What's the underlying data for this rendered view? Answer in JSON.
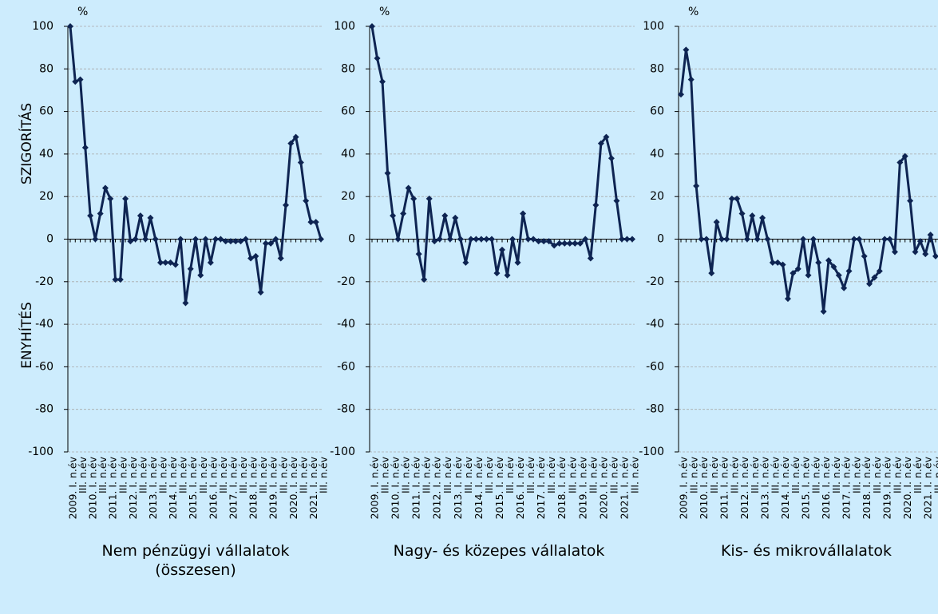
{
  "chart_data": [
    {
      "type": "line",
      "title": "Nem pénzügyi vállalatok (összesen)",
      "y_unit": "%",
      "y_annotations": [
        "SZIGORÍTÁS",
        "ENYHÍTÉS"
      ],
      "color": "#0e2452",
      "grid": true,
      "categories": [
        "2009. I. n.év",
        null,
        "III. n.év",
        null,
        "2010. I. n.év",
        null,
        "III. n.év",
        null,
        "2011. I. n.év",
        null,
        "III. n.év",
        null,
        "2012. I. n.év",
        null,
        "III. n.év",
        null,
        "2013. I. n.év",
        null,
        "III. n.év",
        null,
        "2014. I. n.év",
        null,
        "III. n.év",
        null,
        "2015. I. n.év",
        null,
        "III. n.év",
        null,
        "2016. I. n.év",
        null,
        "III. n.év",
        null,
        "2017. I. n.év",
        null,
        "III. n.év",
        null,
        "2018. I. n.év",
        null,
        "III. n.év",
        null,
        "2019. I. n.év",
        null,
        "III. n.év",
        null,
        "2020. I. n.év",
        null,
        "III. n.év",
        null,
        "2021. I. n.év",
        null,
        "III. n.év"
      ],
      "values": [
        100,
        74,
        75,
        43,
        11,
        0,
        12,
        24,
        19,
        -19,
        -19,
        19,
        -1,
        0,
        11,
        0,
        10,
        0,
        -11,
        -11,
        -11,
        -12,
        0,
        -30,
        -14,
        0,
        -17,
        0,
        -11,
        0,
        0,
        -1,
        -1,
        -1,
        -1,
        0,
        -9,
        -8,
        -25,
        -2,
        -2,
        0,
        -9,
        16,
        45,
        48,
        36,
        18,
        8,
        8,
        0
      ],
      "ylim": [
        -100,
        100
      ],
      "yticks": [
        -100,
        -80,
        -60,
        -40,
        -20,
        0,
        20,
        40,
        60,
        80,
        100
      ]
    },
    {
      "type": "line",
      "title": "Nagy- és közepes vállalatok",
      "y_unit": "%",
      "color": "#0e2452",
      "grid": true,
      "categories": [
        "2009. I. n.év",
        null,
        "III. n.év",
        null,
        "2010. I. n.év",
        null,
        "III. n.év",
        null,
        "2011. I. n.év",
        null,
        "III. n.év",
        null,
        "2012. I. n.év",
        null,
        "III. n.év",
        null,
        "2013. I. n.év",
        null,
        "III. n.év",
        null,
        "2014. I. n.év",
        null,
        "III. n.év",
        null,
        "2015. I. n.év",
        null,
        "III. n.év",
        null,
        "2016. I. n.év",
        null,
        "III. n.év",
        null,
        "2017. I. n.év",
        null,
        "III. n.év",
        null,
        "2018. I. n.év",
        null,
        "III. n.év",
        null,
        "2019. I. n.év",
        null,
        "III. n.év",
        null,
        "2020. I. n.év",
        null,
        "III. n.év",
        null,
        "2021. I. n.év",
        null,
        "III. n.év"
      ],
      "values": [
        100,
        85,
        74,
        31,
        11,
        0,
        12,
        24,
        19,
        -7,
        -19,
        19,
        -1,
        0,
        11,
        0,
        10,
        0,
        -11,
        0,
        0,
        0,
        0,
        0,
        -16,
        -5,
        -17,
        0,
        -11,
        12,
        0,
        0,
        -1,
        -1,
        -1,
        -3,
        -2,
        -2,
        -2,
        -2,
        -2,
        0,
        -9,
        16,
        45,
        48,
        38,
        18,
        0,
        0,
        0
      ],
      "ylim": [
        -100,
        100
      ],
      "yticks": [
        -100,
        -80,
        -60,
        -40,
        -20,
        0,
        20,
        40,
        60,
        80,
        100
      ]
    },
    {
      "type": "line",
      "title": "Kis- és mikrovállalatok",
      "y_unit": "%",
      "color": "#0e2452",
      "grid": true,
      "categories": [
        "2009. I. n.év",
        null,
        "III. n.év",
        null,
        "2010. I. n.év",
        null,
        "III. n.év",
        null,
        "2011. I. n.év",
        null,
        "III. n.év",
        null,
        "2012. I. n.év",
        null,
        "III. n.év",
        null,
        "2013. I. n.év",
        null,
        "III. n.év",
        null,
        "2014. I. n.év",
        null,
        "III. n.év",
        null,
        "2015. I. n.év",
        null,
        "III. n.év",
        null,
        "2016. I. n.év",
        null,
        "III. n.év",
        null,
        "2017. I. n.év",
        null,
        "III. n.év",
        null,
        "2018. I. n.év",
        null,
        "III. n.év",
        null,
        "2019. I. n.év",
        null,
        "III. n.év",
        null,
        "2020. I. n.év",
        null,
        "III. n.év",
        null,
        "2021. I. n.év",
        null,
        "III. n.év"
      ],
      "values": [
        68,
        89,
        75,
        25,
        0,
        0,
        -16,
        8,
        0,
        0,
        19,
        19,
        12,
        0,
        11,
        0,
        10,
        0,
        -11,
        -11,
        -12,
        -28,
        -16,
        -14,
        0,
        -17,
        0,
        -11,
        -34,
        -10,
        -13,
        -17,
        -23,
        -15,
        0,
        0,
        -8,
        -21,
        -18,
        -15,
        0,
        0,
        -6,
        36,
        39,
        18,
        -6,
        -1,
        -7,
        2,
        -8
      ],
      "ylim": [
        -100,
        100
      ],
      "yticks": [
        -100,
        -80,
        -60,
        -40,
        -20,
        0,
        20,
        40,
        60,
        80,
        100
      ]
    }
  ]
}
